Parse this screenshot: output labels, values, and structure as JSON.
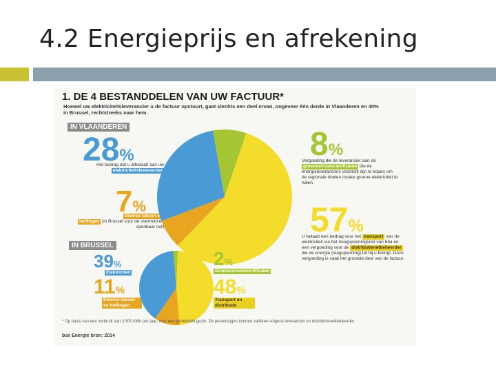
{
  "slide": {
    "title": "4.2 Energieprijs en afrekening"
  },
  "colors": {
    "accent_square": "#c9c232",
    "accent_bar": "#8aa0ad",
    "blue": "#4a9ad6",
    "orange": "#e8a51f",
    "green": "#a5c632",
    "yellow": "#f3dc2a"
  },
  "infographic": {
    "heading": "1. DE 4 BESTANDDELEN VAN UW FACTUUR*",
    "subheading": "Hoewel uw elektriciteitsleverancier u de factuur opstuurt, gaat slechts een deel ervan, ongeveer één derde in Vlaanderen en 40% in Brussel, rechtstreeks naar hem.",
    "flanders": {
      "tag": "IN VLAANDEREN",
      "supplier": {
        "value": "28",
        "unit": "%",
        "text": "Het bedrag dat u afbetaalt aan uw",
        "label": "elektriciteitsleverancier"
      },
      "levies": {
        "value": "7",
        "unit": "%",
        "label_prefix": "Diverse taksen en",
        "label": "heffingen",
        "text": "(in Brussel voor de overheid en openbaar nut)"
      },
      "certificates": {
        "value": "8",
        "unit": "%",
        "text_before": "Vergoeding die de leverancier aan de",
        "label": "groenestroomcertificaten",
        "text_after": "die de energieleveranciers verplicht zijn te kopen om de regionale doelen inzake groene elektriciteit te halen."
      },
      "transport": {
        "value": "57",
        "unit": "%",
        "text_before": "U betaalt een bedrag voor het",
        "label": "transport",
        "text_mid": "van de elektriciteit via het hoogspanningsnet van Elia en een vergoeding voor de",
        "label2": "distributienetbeheerder",
        "text_after": "die de energie (laagspanning) tot bij u brengt. Deze vergoeding is vaak het grootste deel van de factuur."
      }
    },
    "brussels": {
      "tag": "IN BRUSSEL",
      "supplier": {
        "value": "39",
        "unit": "%",
        "label": "Elektriciteit"
      },
      "levies": {
        "value": "11",
        "unit": "%",
        "label": "Diverse taksen en heffingen"
      },
      "certificates": {
        "value": "2",
        "unit": "%",
        "label": "Groenestroomcertificaten"
      },
      "transport": {
        "value": "48",
        "unit": "%",
        "label": "Transport en distributie"
      }
    },
    "footnote": "* Op basis van een verbruik van 3.500 kWh per jaar, voor een gemiddeld gezin. De percentages kunnen variëren volgens leverancier en distributienetbeheerder.",
    "brand": "bse Energie bron: 2014"
  },
  "chart_data": [
    {
      "type": "pie",
      "title": "IN VLAANDEREN",
      "categories": [
        "Elektriciteitsleverancier",
        "Diverse taksen en heffingen",
        "Groenestroomcertificaten",
        "Transport en distributie"
      ],
      "values": [
        28,
        7,
        8,
        57
      ],
      "colors": [
        "#4a9ad6",
        "#e8a51f",
        "#a5c632",
        "#f3dc2a"
      ]
    },
    {
      "type": "pie",
      "title": "IN BRUSSEL",
      "categories": [
        "Elektriciteit",
        "Diverse taksen en heffingen",
        "Groenestroomcertificaten",
        "Transport en distributie"
      ],
      "values": [
        39,
        11,
        2,
        48
      ],
      "colors": [
        "#4a9ad6",
        "#e8a51f",
        "#a5c632",
        "#f3dc2a"
      ]
    }
  ]
}
